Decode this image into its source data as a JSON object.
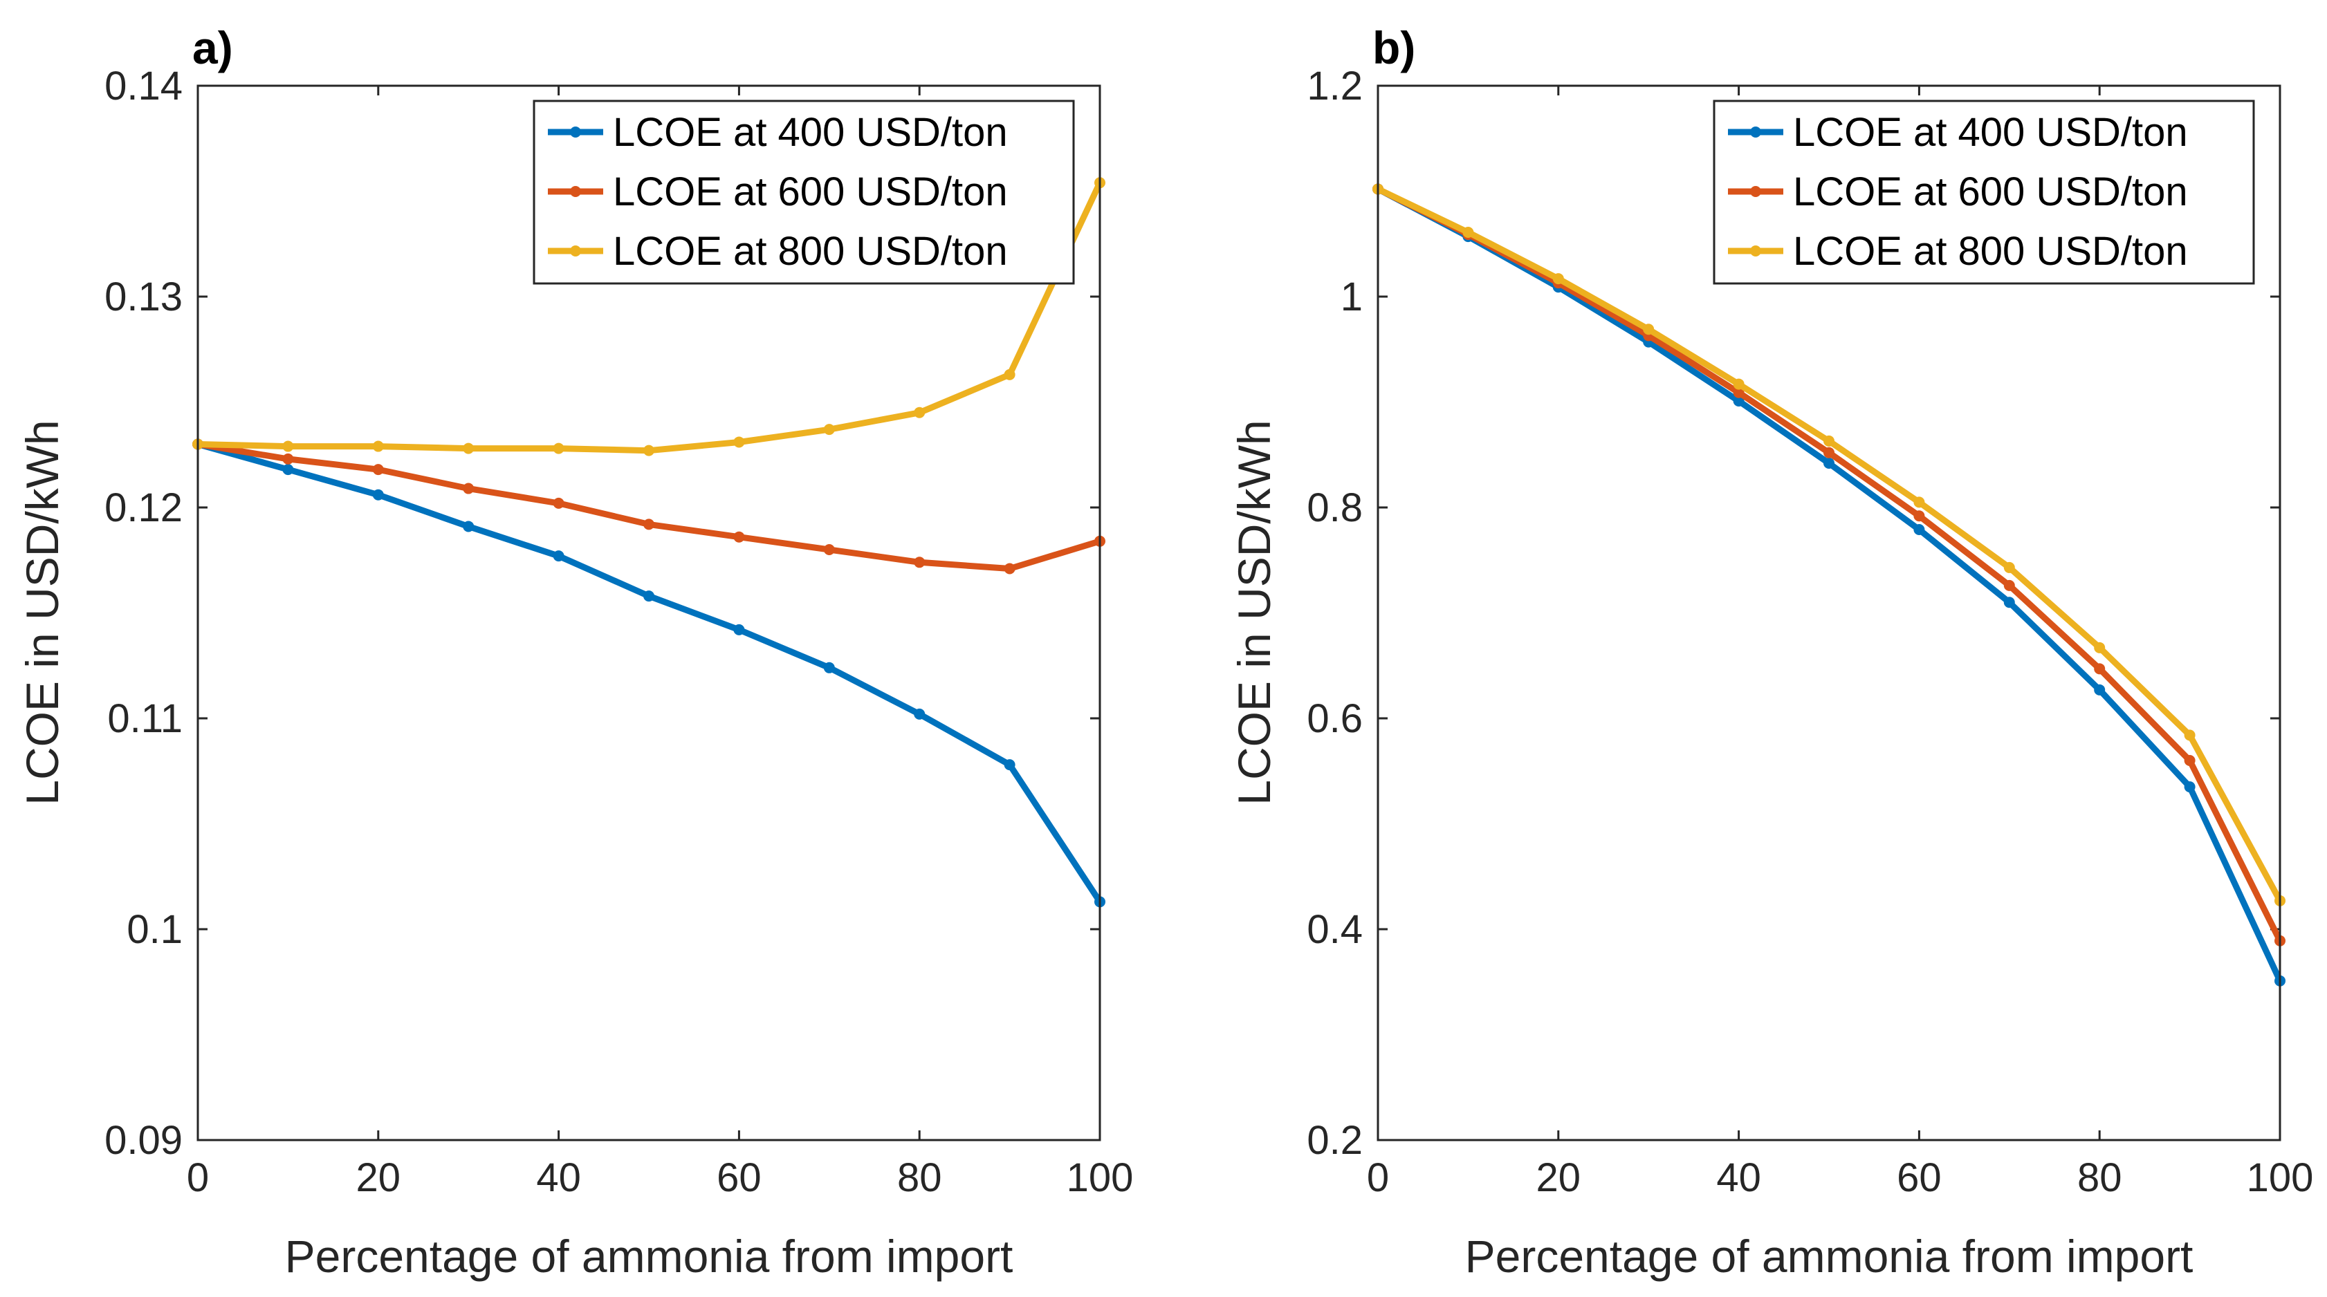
{
  "chart_data": [
    {
      "type": "line",
      "panel_label": "a)",
      "title": "",
      "xlabel": "Percentage of ammonia from import",
      "ylabel": "LCOE in USD/kWh",
      "xlim": [
        0,
        100
      ],
      "ylim": [
        0.09,
        0.14
      ],
      "xticks": [
        0,
        20,
        40,
        60,
        80,
        100
      ],
      "xtick_labels": [
        "0",
        "20",
        "40",
        "60",
        "80",
        "100"
      ],
      "yticks": [
        0.09,
        0.1,
        0.11,
        0.12,
        0.13,
        0.14
      ],
      "ytick_labels": [
        "0.09",
        "0.1",
        "0.11",
        "0.12",
        "0.13",
        "0.14"
      ],
      "grid": false,
      "legend_position": "top-right",
      "x": [
        0,
        10,
        20,
        30,
        40,
        50,
        60,
        70,
        80,
        90,
        100
      ],
      "series": [
        {
          "name": "LCOE at 400 USD/ton",
          "color": "#0072BD",
          "values": [
            0.123,
            0.1218,
            0.1206,
            0.1191,
            0.1177,
            0.1158,
            0.1142,
            0.1124,
            0.1102,
            0.1078,
            0.1013
          ]
        },
        {
          "name": "LCOE at 600 USD/ton",
          "color": "#D95319",
          "values": [
            0.123,
            0.1223,
            0.1218,
            0.1209,
            0.1202,
            0.1192,
            0.1186,
            0.118,
            0.1174,
            0.1171,
            0.1184
          ]
        },
        {
          "name": "LCOE at 800 USD/ton",
          "color": "#EDB120",
          "values": [
            0.123,
            0.1229,
            0.1229,
            0.1228,
            0.1228,
            0.1227,
            0.1231,
            0.1237,
            0.1245,
            0.1263,
            0.1354
          ]
        }
      ]
    },
    {
      "type": "line",
      "panel_label": "b)",
      "title": "",
      "xlabel": "Percentage of ammonia from import",
      "ylabel": "LCOE in USD/kWh",
      "xlim": [
        0,
        100
      ],
      "ylim": [
        0.2,
        1.2
      ],
      "xticks": [
        0,
        20,
        40,
        60,
        80,
        100
      ],
      "xtick_labels": [
        "0",
        "20",
        "40",
        "60",
        "80",
        "100"
      ],
      "yticks": [
        0.2,
        0.4,
        0.6,
        0.8,
        1.0,
        1.2
      ],
      "ytick_labels": [
        "0.2",
        "0.4",
        "0.6",
        "0.8",
        "1",
        "1.2"
      ],
      "grid": false,
      "legend_position": "top-right",
      "x": [
        0,
        10,
        20,
        30,
        40,
        50,
        60,
        70,
        80,
        90,
        100
      ],
      "series": [
        {
          "name": "LCOE at 400 USD/ton",
          "color": "#0072BD",
          "values": [
            1.102,
            1.057,
            1.009,
            0.957,
            0.901,
            0.842,
            0.779,
            0.71,
            0.627,
            0.535,
            0.351
          ]
        },
        {
          "name": "LCOE at 600 USD/ton",
          "color": "#D95319",
          "values": [
            1.102,
            1.059,
            1.013,
            0.963,
            0.909,
            0.852,
            0.792,
            0.726,
            0.647,
            0.56,
            0.389
          ]
        },
        {
          "name": "LCOE at 800 USD/ton",
          "color": "#EDB120",
          "values": [
            1.102,
            1.061,
            1.017,
            0.969,
            0.917,
            0.863,
            0.805,
            0.743,
            0.667,
            0.584,
            0.427
          ]
        }
      ]
    }
  ]
}
